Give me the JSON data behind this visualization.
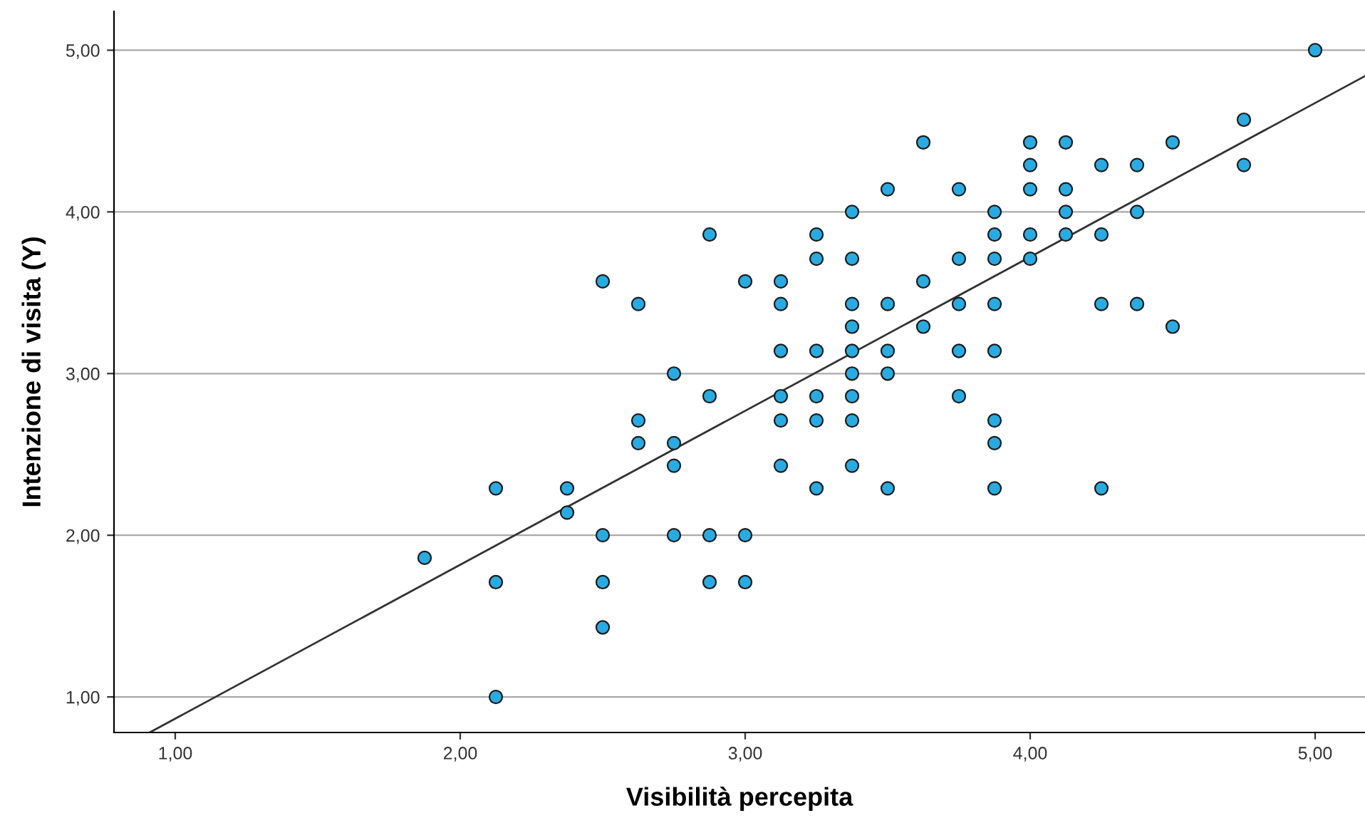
{
  "chart_data": {
    "type": "scatter",
    "xlabel": "Visibilità percepita",
    "ylabel": "Intenzione di visita (Y)",
    "xlim": [
      0.785,
      5.175
    ],
    "ylim": [
      0.78,
      5.24
    ],
    "xticks": [
      {
        "value": 1,
        "label": "1,00"
      },
      {
        "value": 2,
        "label": "2,00"
      },
      {
        "value": 3,
        "label": "3,00"
      },
      {
        "value": 4,
        "label": "4,00"
      },
      {
        "value": 5,
        "label": "5,00"
      }
    ],
    "yticks": [
      {
        "value": 1,
        "label": "1,00"
      },
      {
        "value": 2,
        "label": "2,00"
      },
      {
        "value": 3,
        "label": "3,00"
      },
      {
        "value": 4,
        "label": "4,00"
      },
      {
        "value": 5,
        "label": "5,00"
      }
    ],
    "grid": "y",
    "series": [
      {
        "color": "#29abe2",
        "marker": "circle",
        "x": [
          1.875,
          2.125,
          2.125,
          2.125,
          2.375,
          2.375,
          2.5,
          2.5,
          2.5,
          2.5,
          2.625,
          2.625,
          2.625,
          2.75,
          2.75,
          2.75,
          2.75,
          2.875,
          2.875,
          2.875,
          2.875,
          3.0,
          3.0,
          3.0,
          3.125,
          3.125,
          3.125,
          3.125,
          3.125,
          3.125,
          3.25,
          3.25,
          3.25,
          3.25,
          3.25,
          3.25,
          3.375,
          3.375,
          3.375,
          3.375,
          3.375,
          3.375,
          3.375,
          3.375,
          3.375,
          3.5,
          3.5,
          3.5,
          3.5,
          3.5,
          3.625,
          3.625,
          3.625,
          3.75,
          3.75,
          3.75,
          3.75,
          3.75,
          3.875,
          3.875,
          3.875,
          3.875,
          3.875,
          3.875,
          3.875,
          3.875,
          4.0,
          4.0,
          4.0,
          4.0,
          4.0,
          4.125,
          4.125,
          4.125,
          4.125,
          4.25,
          4.25,
          4.25,
          4.25,
          4.375,
          4.375,
          4.375,
          4.5,
          4.5,
          4.75,
          4.75,
          5.0
        ],
        "values": [
          1.86,
          2.29,
          1.71,
          1.0,
          2.29,
          2.14,
          3.57,
          2.0,
          1.71,
          1.43,
          3.43,
          2.71,
          2.57,
          3.0,
          2.57,
          2.43,
          2.0,
          3.86,
          2.86,
          2.0,
          1.71,
          3.57,
          2.0,
          1.71,
          3.57,
          3.43,
          3.14,
          2.86,
          2.71,
          2.43,
          3.86,
          3.71,
          3.14,
          2.86,
          2.71,
          2.29,
          4.0,
          3.71,
          3.43,
          3.29,
          3.14,
          3.0,
          2.86,
          2.71,
          2.43,
          4.14,
          3.43,
          3.14,
          3.0,
          2.29,
          4.43,
          3.57,
          3.29,
          4.14,
          3.71,
          3.43,
          3.14,
          2.86,
          4.0,
          3.86,
          3.71,
          3.43,
          3.14,
          2.71,
          2.57,
          2.29,
          4.43,
          4.29,
          4.14,
          3.86,
          3.71,
          4.43,
          4.14,
          4.0,
          3.86,
          4.29,
          3.86,
          3.43,
          2.29,
          4.29,
          4.0,
          3.43,
          4.43,
          3.29,
          4.57,
          4.29,
          5.0
        ]
      },
      {
        "type": "line",
        "color": "#333333",
        "x": [
          0.91,
          5.175
        ],
        "values": [
          0.78,
          4.84
        ]
      }
    ]
  }
}
